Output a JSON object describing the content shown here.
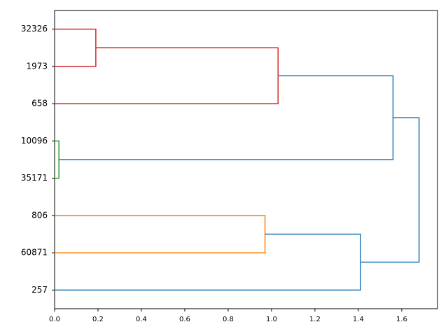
{
  "chart_data": {
    "type": "dendrogram",
    "orientation": "left",
    "categories": [
      "32326",
      "1973",
      "658",
      "10096",
      "35171",
      "806",
      "60871",
      "257"
    ],
    "links": [
      {
        "children": [
          0,
          1
        ],
        "height": 0.19,
        "color": "#d62728"
      },
      {
        "children": [
          8,
          2
        ],
        "height": 1.03,
        "color": "#d62728"
      },
      {
        "children": [
          3,
          4
        ],
        "height": 0.02,
        "color": "#2ca02c"
      },
      {
        "children": [
          9,
          10
        ],
        "height": 1.56,
        "color": "#1f77b4"
      },
      {
        "children": [
          5,
          6
        ],
        "height": 0.97,
        "color": "#ff7f0e"
      },
      {
        "children": [
          12,
          7
        ],
        "height": 1.41,
        "color": "#1f77b4"
      },
      {
        "children": [
          11,
          13
        ],
        "height": 1.68,
        "color": "#1f77b4"
      }
    ],
    "xlim": [
      0,
      1.765
    ],
    "xticks": [
      {
        "value": 0,
        "label": "0.0"
      },
      {
        "value": 0.2,
        "label": "0.2"
      },
      {
        "value": 0.4,
        "label": "0.4"
      },
      {
        "value": 0.6,
        "label": "0.6"
      },
      {
        "value": 0.8,
        "label": "0.8"
      },
      {
        "value": 1.0,
        "label": "1.0"
      },
      {
        "value": 1.2,
        "label": "1.2"
      },
      {
        "value": 1.4,
        "label": "1.4"
      },
      {
        "value": 1.6,
        "label": "1.6"
      }
    ]
  }
}
